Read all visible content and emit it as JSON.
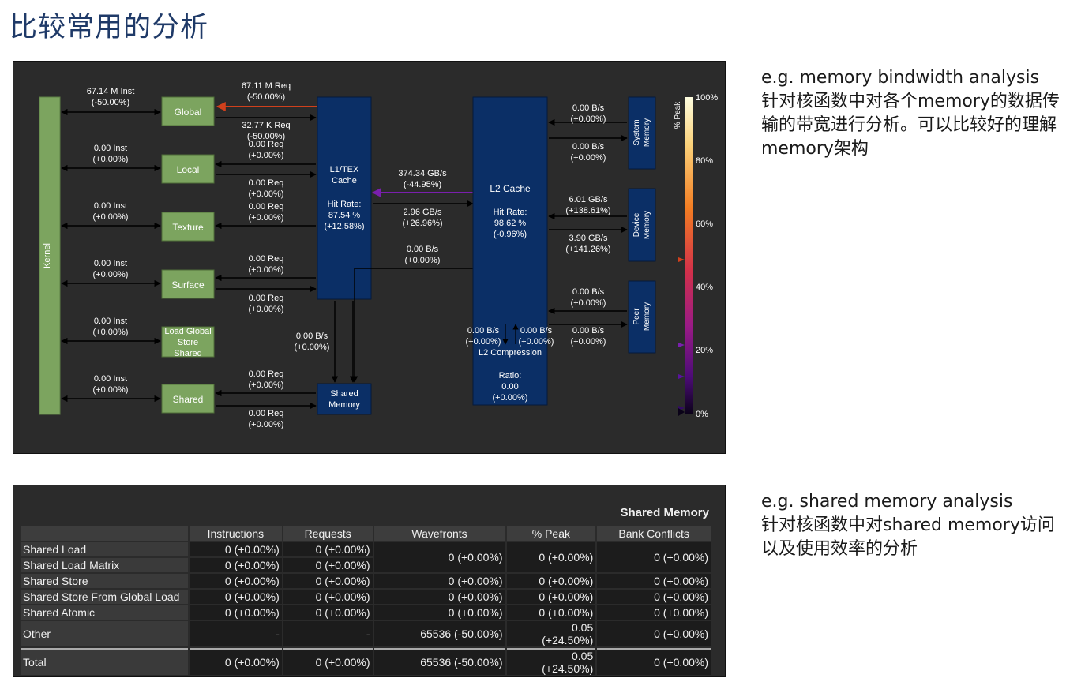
{
  "title": "比较常用的分析",
  "notes": {
    "memory_header": "e.g. memory bindwidth analysis",
    "memory_body": "针对核函数中对各个memory的数据传输的带宽进行分析。可以比较好的理解memory架构",
    "shared_header": "e.g. shared memory analysis",
    "shared_body": "针对核函数中对shared memory访问以及使用效率的分析"
  },
  "diagram": {
    "kernel": "Kernel",
    "units": {
      "global": "Global",
      "local": "Local",
      "texture": "Texture",
      "surface": "Surface",
      "lgss": [
        "Load Global",
        "Store",
        "Shared"
      ],
      "shared": "Shared"
    },
    "inst": [
      [
        "67.14 M Inst",
        "(-50.00%)"
      ],
      [
        "0.00 Inst",
        "(+0.00%)"
      ],
      [
        "0.00 Inst",
        "(+0.00%)"
      ],
      [
        "0.00 Inst",
        "(+0.00%)"
      ],
      [
        "0.00 Inst",
        "(+0.00%)"
      ],
      [
        "0.00 Inst",
        "(+0.00%)"
      ]
    ],
    "req": [
      [
        "67.11 M Req",
        "(-50.00%)"
      ],
      [
        "32.77 K Req",
        "(-50.00%)"
      ],
      [
        "0.00 Req",
        "(+0.00%)"
      ],
      [
        "0.00 Req",
        "(+0.00%)"
      ],
      [
        "0.00 Req",
        "(+0.00%)"
      ],
      [
        "0.00 Req",
        "(+0.00%)"
      ],
      [
        "0.00 Req",
        "(+0.00%)"
      ],
      [
        "0.00 Req",
        "(+0.00%)"
      ],
      [
        "0.00 Req",
        "(+0.00%)"
      ],
      [
        "0.00 Req",
        "(+0.00%)"
      ]
    ],
    "l1": {
      "name": [
        "L1/TEX",
        "Cache"
      ],
      "hit_label": "Hit Rate:",
      "hit": "87.54 %",
      "delta": "(+12.58%)"
    },
    "shared_mem": [
      "Shared",
      "Memory"
    ],
    "l1_shared_bw": [
      "0.00 B/s",
      "(+0.00%)"
    ],
    "l1_l2": [
      [
        "374.34 GB/s",
        "(-44.95%)"
      ],
      [
        "2.96 GB/s",
        "(+26.96%)"
      ],
      [
        "0.00 B/s",
        "(+0.00%)"
      ]
    ],
    "l2": {
      "name": "L2 Cache",
      "hit_label": "Hit Rate:",
      "hit": "98.62 %",
      "delta": "(-0.96%)",
      "comp_left": [
        "0.00 B/s",
        "(+0.00%)"
      ],
      "comp_right": [
        "0.00 B/s",
        "(+0.00%)"
      ],
      "comp_name": "L2 Compression",
      "ratio_label": "Ratio:",
      "ratio": "0.00",
      "ratio_delta": "(+0.00%)"
    },
    "system_mem": [
      "System",
      "Memory"
    ],
    "device_mem": [
      "Device",
      "Memory"
    ],
    "peer_mem": [
      "Peer",
      "Memory"
    ],
    "l2_ext": [
      [
        "0.00 B/s",
        "(+0.00%)"
      ],
      [
        "0.00 B/s",
        "(+0.00%)"
      ],
      [
        "6.01 GB/s",
        "(+138.61%)"
      ],
      [
        "3.90 GB/s",
        "(+141.26%)"
      ],
      [
        "0.00 B/s",
        "(+0.00%)"
      ],
      [
        "0.00 B/s",
        "(+0.00%)"
      ]
    ],
    "legend": {
      "title": "% Peak",
      "ticks": [
        "100%",
        "80%",
        "60%",
        "40%",
        "20%",
        "0%"
      ]
    },
    "colors": {
      "unit_green": "#7ca45f",
      "cache_blue": "#0b2f66",
      "high_link": "#d0401c",
      "purple_link": "#7a1fae"
    }
  },
  "table": {
    "title": "Shared Memory",
    "columns": [
      "Instructions",
      "Requests",
      "Wavefronts",
      "% Peak",
      "Bank Conflicts"
    ],
    "rows": [
      {
        "label": "Shared Load",
        "instructions": "0  (+0.00%)",
        "requests": "0  (+0.00%)",
        "wavefronts": "0  (+0.00%)",
        "peak": "0  (+0.00%)",
        "bank": "0  (+0.00%)"
      },
      {
        "label": "Shared Load Matrix",
        "instructions": "0  (+0.00%)",
        "requests": "0  (+0.00%)"
      },
      {
        "label": "Shared Store",
        "instructions": "0  (+0.00%)",
        "requests": "0  (+0.00%)",
        "wavefronts": "0  (+0.00%)",
        "peak": "0  (+0.00%)",
        "bank": "0  (+0.00%)"
      },
      {
        "label": "Shared Store From Global Load",
        "instructions": "0  (+0.00%)",
        "requests": "0  (+0.00%)",
        "wavefronts": "0  (+0.00%)",
        "peak": "0  (+0.00%)",
        "bank": "0  (+0.00%)"
      },
      {
        "label": "Shared Atomic",
        "instructions": "0  (+0.00%)",
        "requests": "0  (+0.00%)",
        "wavefronts": "0  (+0.00%)",
        "peak": "0  (+0.00%)",
        "bank": "0  (+0.00%)"
      },
      {
        "label": "Other",
        "instructions": "-",
        "requests": "-",
        "wavefronts": "65536  (-50.00%)",
        "peak": [
          "0.05",
          "(+24.50%)"
        ],
        "bank": "0  (+0.00%)"
      },
      {
        "label": "Total",
        "instructions": "0  (+0.00%)",
        "requests": "0  (+0.00%)",
        "wavefronts": "65536  (-50.00%)",
        "peak": [
          "0.05",
          "(+24.50%)"
        ],
        "bank": "0  (+0.00%)"
      }
    ]
  }
}
